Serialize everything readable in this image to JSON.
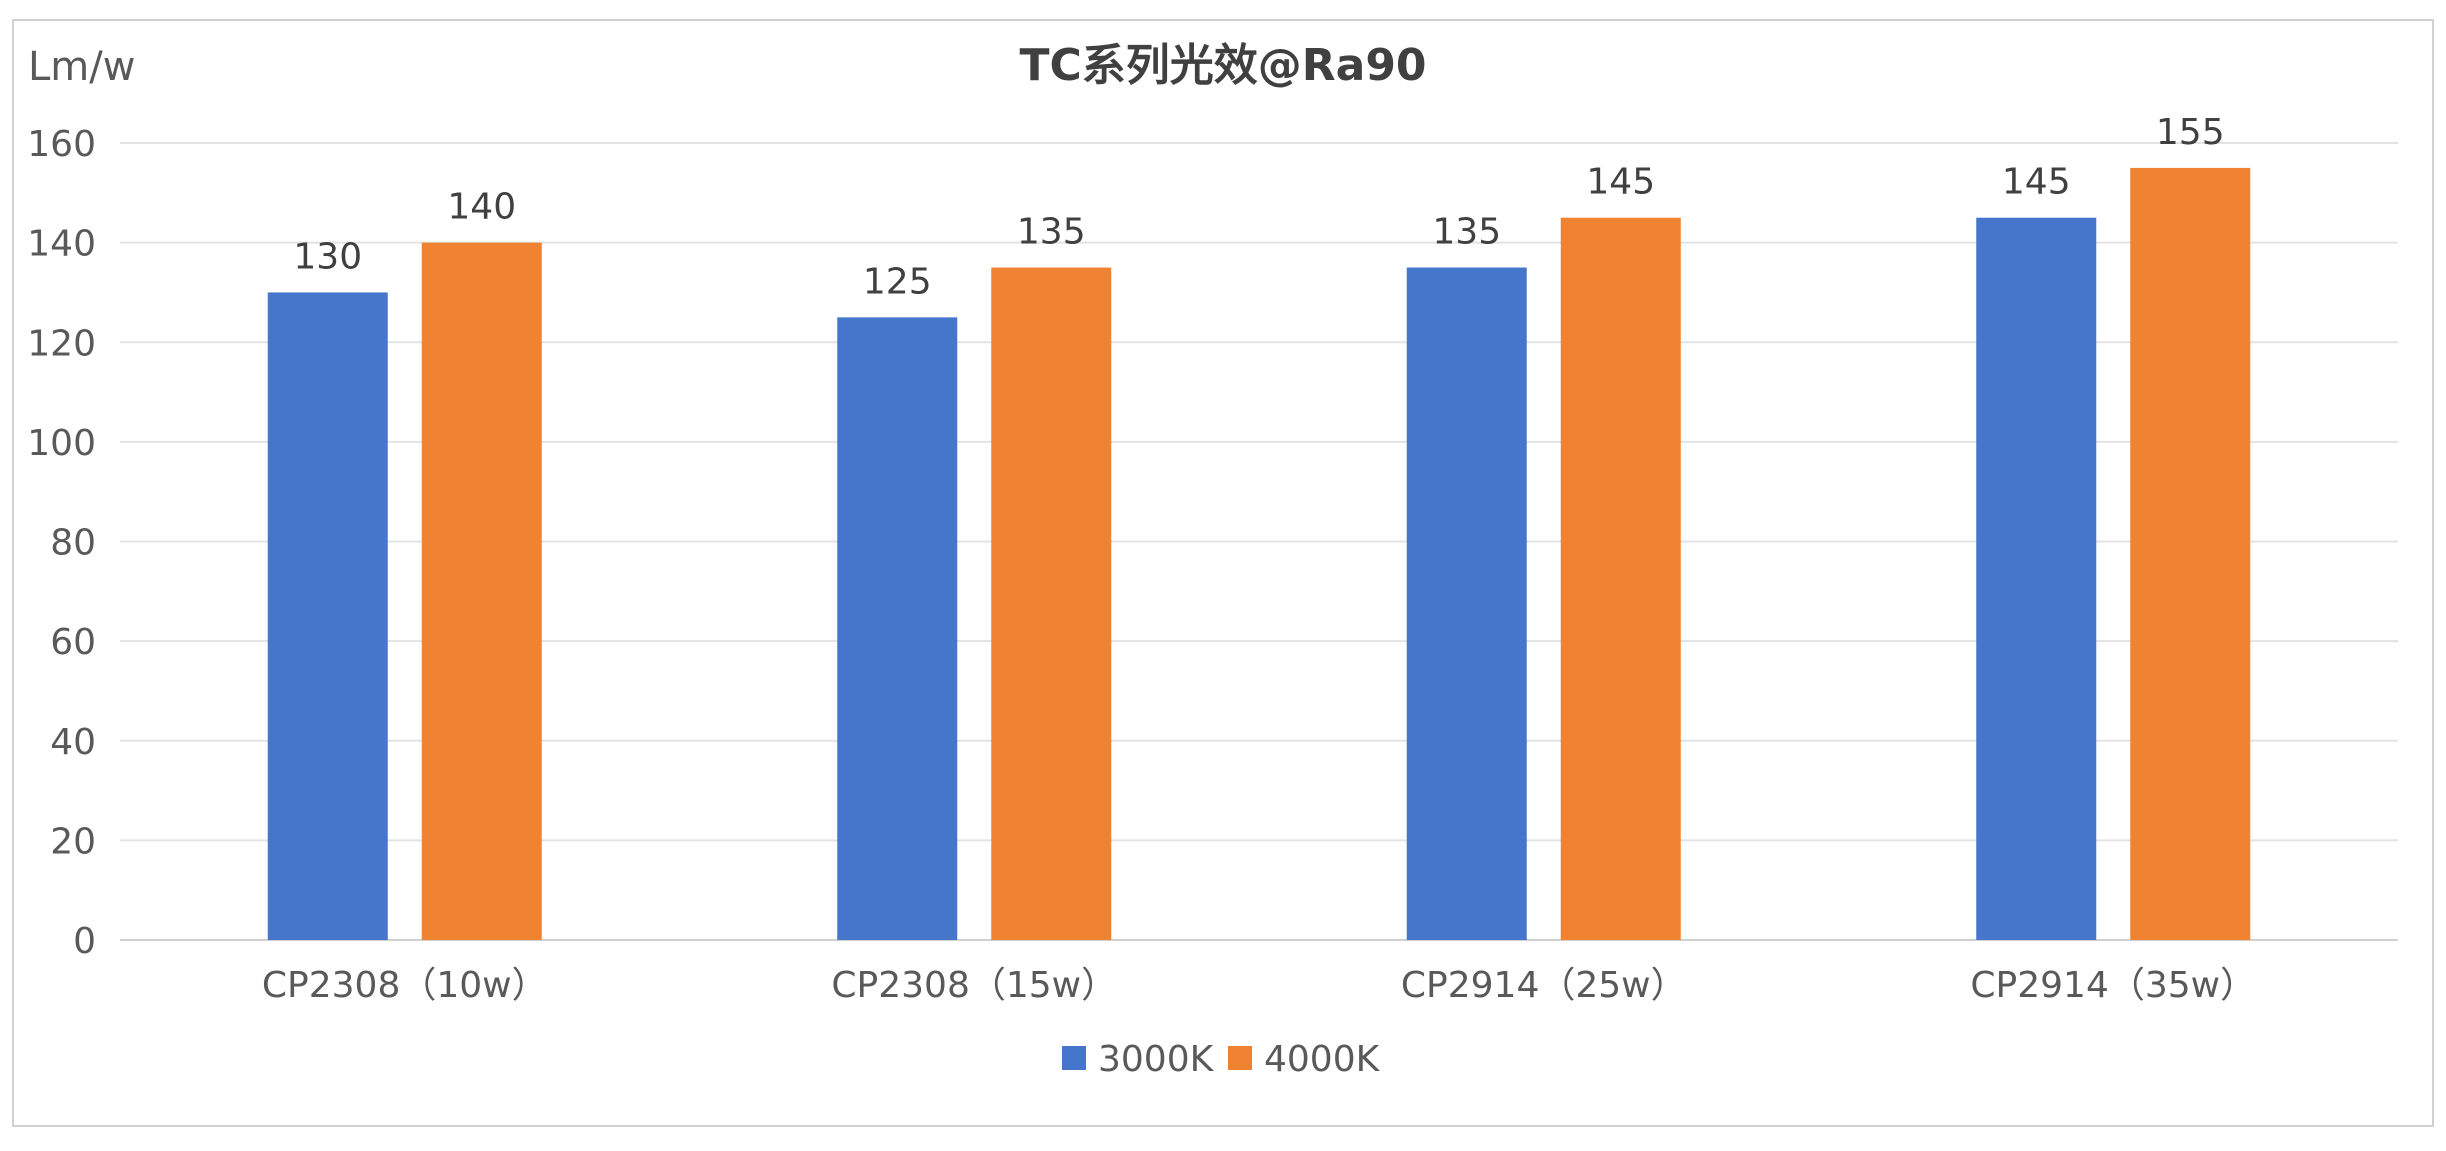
{
  "chart_data": {
    "type": "bar",
    "title": "TC系列光效@Ra90",
    "ylabel": "Lm/w",
    "xlabel": "",
    "categories": [
      "CP2308（10w）",
      "CP2308（15w）",
      "CP2914（25w）",
      "CP2914（35w）"
    ],
    "series": [
      {
        "name": "3000K",
        "color": "#4675CC",
        "values": [
          130,
          125,
          135,
          145
        ]
      },
      {
        "name": "4000K",
        "color": "#EF8331",
        "values": [
          140,
          135,
          145,
          155
        ]
      }
    ],
    "ylim": [
      0,
      160
    ],
    "yticks": [
      0,
      20,
      40,
      60,
      80,
      100,
      120,
      140,
      160
    ],
    "grid": true,
    "legend": "bottom-center",
    "data_labels": true
  }
}
